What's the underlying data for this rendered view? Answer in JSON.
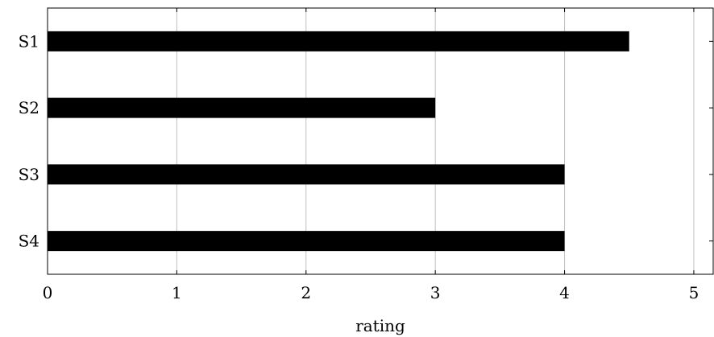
{
  "chart_data": {
    "type": "bar",
    "orientation": "horizontal",
    "categories": [
      "S1",
      "S2",
      "S3",
      "S4"
    ],
    "values": [
      4.5,
      3,
      4,
      4
    ],
    "xlabel": "rating",
    "ylabel": "",
    "xlim": [
      0,
      5.15
    ],
    "xticks": [
      "0",
      "1",
      "2",
      "3",
      "4",
      "5"
    ],
    "grid": "vertical",
    "bar_color": "#000000",
    "grid_color": "#bfbfbf"
  }
}
